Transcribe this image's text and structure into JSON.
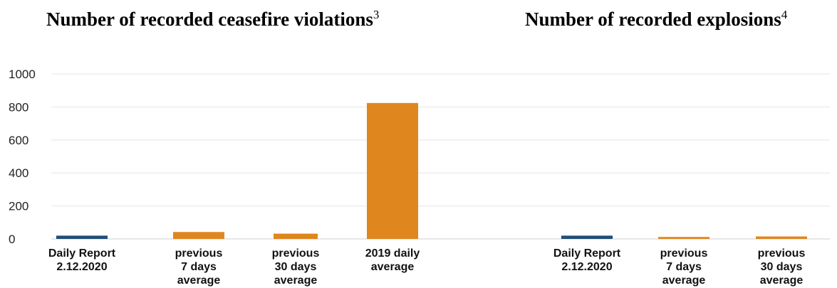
{
  "titles": {
    "left": {
      "text": "Number of recorded ceasefire violations",
      "footnote": "3"
    },
    "right": {
      "text": "Number of recorded explosions",
      "footnote": "4"
    }
  },
  "colors": {
    "current": "#1f4e79",
    "historic": "#e0861e",
    "grid": "#e6e6e6",
    "axis": "#cfcfcf"
  },
  "chart_data": [
    {
      "type": "bar",
      "title": "Number of recorded ceasefire violations",
      "ylim": [
        0,
        1000
      ],
      "yticks": [
        0,
        200,
        400,
        600,
        800,
        1000
      ],
      "grid": true,
      "categories": [
        [
          "Daily Report",
          "2.12.2020"
        ],
        [
          "previous",
          "7 days",
          "average"
        ],
        [
          "previous",
          "30 days",
          "average"
        ],
        [
          "2019 daily",
          "average"
        ]
      ],
      "values": [
        20,
        42,
        32,
        824
      ]
    },
    {
      "type": "bar",
      "title": "Number of recorded explosions",
      "ylim": [
        0,
        1000
      ],
      "grid": true,
      "categories": [
        [
          "Daily Report",
          "2.12.2020"
        ],
        [
          "previous",
          "7 days",
          "average"
        ],
        [
          "previous",
          "30 days",
          "average"
        ]
      ],
      "values": [
        20,
        12,
        15
      ]
    }
  ]
}
